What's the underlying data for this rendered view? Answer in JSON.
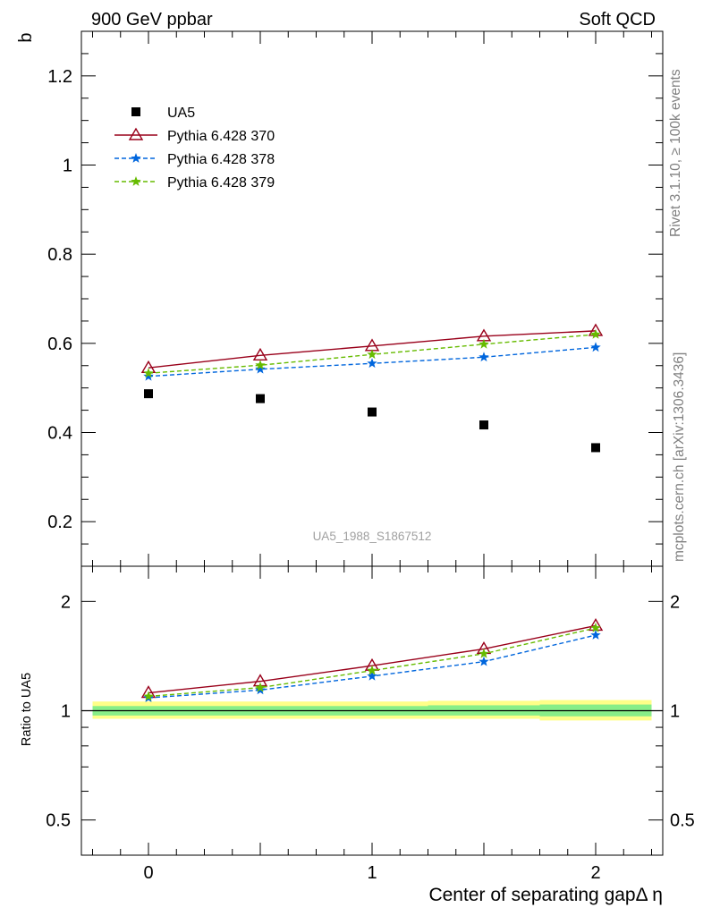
{
  "header": {
    "left": "900 GeV ppbar",
    "right": "Soft QCD"
  },
  "side_labels": {
    "rivet": "Rivet 3.1.10, ≥ 100k events",
    "mcplots": "mcplots.cern.ch [arXiv:1306.3436]"
  },
  "colors": {
    "data": "#000000",
    "p370": "#99001a",
    "p378": "#0066dd",
    "p379": "#66bb00",
    "band_outer": "#ffff88",
    "band_inner": "#88ee88"
  },
  "chart_data": [
    {
      "type": "scatter",
      "panel": "main",
      "ylabel": "b",
      "xlabel": "",
      "xlim": [
        -0.3,
        2.3
      ],
      "ylim": [
        0.1,
        1.3
      ],
      "yticks": [
        0.2,
        0.4,
        0.6,
        0.8,
        1.0,
        1.2
      ],
      "ytick_labels": [
        "0.2",
        "0.4",
        "0.6",
        "0.8",
        "1",
        "1.2"
      ],
      "analysis_label": "UA5_1988_S1867512",
      "legend_placement": "top-left",
      "x": [
        0,
        0.5,
        1.0,
        1.5,
        2.0
      ],
      "series": [
        {
          "name": "UA5",
          "key": "data",
          "marker": "square",
          "values": [
            0.487,
            0.476,
            0.446,
            0.417,
            0.366
          ]
        },
        {
          "name": "Pythia 6.428 370",
          "key": "p370",
          "marker": "triangle",
          "line": "solid",
          "values": [
            0.545,
            0.573,
            0.594,
            0.616,
            0.628
          ]
        },
        {
          "name": "Pythia 6.428 378",
          "key": "p378",
          "marker": "star",
          "line": "dashed",
          "values": [
            0.526,
            0.542,
            0.555,
            0.569,
            0.591
          ]
        },
        {
          "name": "Pythia 6.428 379",
          "key": "p379",
          "marker": "star",
          "line": "dashed",
          "values": [
            0.533,
            0.551,
            0.575,
            0.598,
            0.62
          ]
        }
      ]
    },
    {
      "type": "line",
      "panel": "ratio",
      "ylabel": "Ratio to UA5",
      "xlabel": "Center of separating gapΔ η",
      "xlim": [
        -0.3,
        2.3
      ],
      "xticks": [
        0,
        1,
        2
      ],
      "xtick_labels": [
        "0",
        "1",
        "2"
      ],
      "ylim": [
        0.4,
        2.5
      ],
      "y_scale": "log",
      "yticks": [
        0.5,
        1,
        2
      ],
      "ytick_labels": [
        "0.5",
        "1",
        "2"
      ],
      "x": [
        0,
        0.5,
        1.0,
        1.5,
        2.0
      ],
      "band_edges": [
        -0.25,
        0.25,
        0.75,
        1.25,
        1.75,
        2.25
      ],
      "band_outer": [
        [
          0.95,
          1.06
        ],
        [
          0.95,
          1.06
        ],
        [
          0.95,
          1.06
        ],
        [
          0.95,
          1.065
        ],
        [
          0.94,
          1.07
        ]
      ],
      "band_inner": [
        [
          0.97,
          1.03
        ],
        [
          0.97,
          1.03
        ],
        [
          0.97,
          1.03
        ],
        [
          0.97,
          1.035
        ],
        [
          0.965,
          1.04
        ]
      ],
      "series": [
        {
          "name": "Pythia 6.428 370",
          "key": "p370",
          "marker": "triangle",
          "line": "solid",
          "values": [
            1.12,
            1.205,
            1.33,
            1.48,
            1.715
          ]
        },
        {
          "name": "Pythia 6.428 378",
          "key": "p378",
          "marker": "star",
          "line": "dashed",
          "values": [
            1.085,
            1.14,
            1.245,
            1.365,
            1.615
          ]
        },
        {
          "name": "Pythia 6.428 379",
          "key": "p379",
          "marker": "star",
          "line": "dashed",
          "values": [
            1.095,
            1.158,
            1.29,
            1.435,
            1.69
          ]
        }
      ]
    }
  ]
}
